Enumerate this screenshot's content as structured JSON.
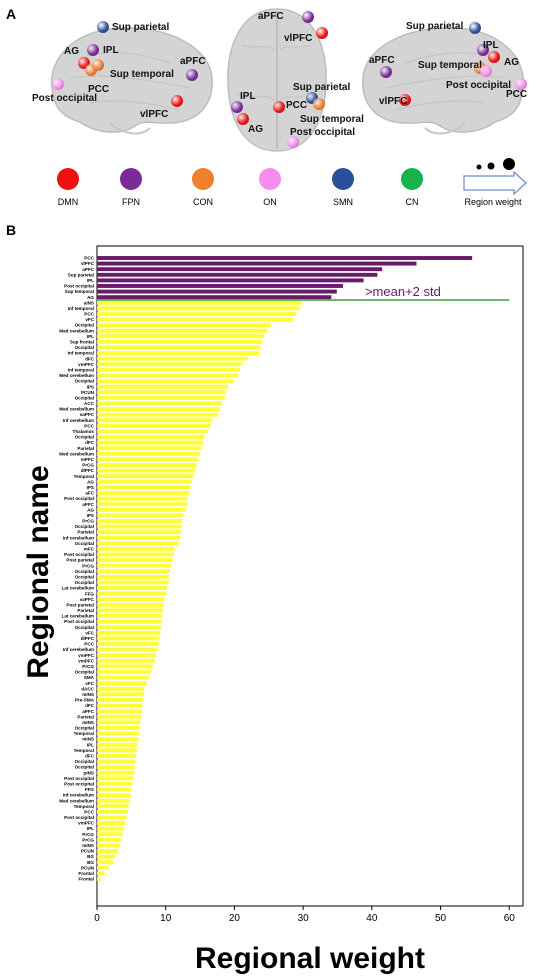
{
  "panels": {
    "a_label": "A",
    "b_label": "B"
  },
  "brain_views": [
    {
      "regions": [
        {
          "name": "Sup parietal",
          "network": "SMN"
        },
        {
          "name": "IPL",
          "network": "FPN"
        },
        {
          "name": "AG",
          "network": "DMN"
        },
        {
          "name": "PCC",
          "network": "CON"
        },
        {
          "name": "Sup temporal",
          "network": "CON"
        },
        {
          "name": "Post occipital",
          "network": "ON"
        },
        {
          "name": "aPFC",
          "network": "FPN"
        },
        {
          "name": "vlPFC",
          "network": "DMN"
        }
      ]
    },
    {
      "regions": [
        {
          "name": "aPFC",
          "network": "FPN"
        },
        {
          "name": "vlPFC",
          "network": "DMN"
        },
        {
          "name": "IPL",
          "network": "FPN"
        },
        {
          "name": "AG",
          "network": "DMN"
        },
        {
          "name": "PCC",
          "network": "DMN"
        },
        {
          "name": "Sup parietal",
          "network": "SMN"
        },
        {
          "name": "Sup temporal",
          "network": "CON"
        },
        {
          "name": "Post occipital",
          "network": "ON"
        }
      ]
    },
    {
      "regions": [
        {
          "name": "Sup parietal",
          "network": "SMN"
        },
        {
          "name": "IPL",
          "network": "FPN"
        },
        {
          "name": "aPFC",
          "network": "FPN"
        },
        {
          "name": "Sup temporal",
          "network": "CON"
        },
        {
          "name": "AG",
          "network": "DMN"
        },
        {
          "name": "Post occipital",
          "network": "ON"
        },
        {
          "name": "vlPFC",
          "network": "DMN"
        },
        {
          "name": "PCC",
          "network": "ON"
        }
      ]
    }
  ],
  "legend": {
    "networks": [
      {
        "label": "DMN",
        "color": "#ee1111"
      },
      {
        "label": "FPN",
        "color": "#7a2a9a"
      },
      {
        "label": "CON",
        "color": "#f07f2e"
      },
      {
        "label": "ON",
        "color": "#f58cf0"
      },
      {
        "label": "SMN",
        "color": "#2c4f9a"
      },
      {
        "label": "CN",
        "color": "#17b24a"
      }
    ],
    "weight_label": "Region weight"
  },
  "colors": {
    "top_bar": "#6a1a6a",
    "other_bar": "#ffff33",
    "threshold_line": "#3aa33a",
    "threshold_text": "#6a1a6a"
  },
  "chart_data": {
    "type": "bar",
    "orientation": "horizontal",
    "xlabel": "Regional weight",
    "ylabel": "Regional name",
    "xlim": [
      0,
      62
    ],
    "xticks": [
      0,
      10,
      20,
      30,
      40,
      50,
      60
    ],
    "threshold": {
      "label": ">mean+2 std",
      "value": 30
    },
    "categories": [
      "PCC",
      "vlPFC",
      "aPFC",
      "Sup parietal",
      "IPL",
      "Post occipital",
      "Sup temporal",
      "AG",
      "aINS",
      "Inf temporal",
      "PCC",
      "vFC",
      "Occipital",
      "Med cerebellum",
      "IPL",
      "Sup frontal",
      "Occipital",
      "Inf temporal",
      "dFC",
      "vmPFC",
      "Inf temporal",
      "Med cerebellum",
      "Occipital",
      "IPS",
      "PCUN",
      "Occipital",
      "ACC",
      "Med cerebellum",
      "vaPFC",
      "Inf cerebellum",
      "PCC",
      "Thalamus",
      "Occipital",
      "dFC",
      "Parietal",
      "Med cerebellum",
      "mPFC",
      "PrCG",
      "dlPFC",
      "Temporal",
      "AG",
      "IPS",
      "aFC",
      "Post occipital",
      "aPFC",
      "AG",
      "IPS",
      "PrCG",
      "Occipital",
      "Parietal",
      "Inf cerebellum",
      "Occipital",
      "mFC",
      "Post occipital",
      "Post parietal",
      "PrCG",
      "Occipital",
      "Occipital",
      "Occipital",
      "Lat cerebellum",
      "FFG",
      "vaPFC",
      "Post parietal",
      "Parietal",
      "Lat cerebellum",
      "Post occipital",
      "Occipital",
      "vFC",
      "dlPFC",
      "PCC",
      "Inf cerebellum",
      "vmPFC",
      "vmPFC",
      "PrCG",
      "Occipital",
      "SMA",
      "vFC",
      "dACC",
      "mINS",
      "Pre-SMA",
      "dFC",
      "aPFC",
      "Parietal",
      "mINS",
      "Occipital",
      "Temporal",
      "mINS",
      "IPL",
      "Temporal",
      "dFC",
      "Occipital",
      "Occipital",
      "pINS",
      "Post occipital",
      "Post occipital",
      "FFG",
      "Inf cerebellum",
      "Med cerebellum",
      "Temporal",
      "PCC",
      "Post occipital",
      "vmPFC",
      "IPL",
      "PrCG",
      "PrCG",
      "mINS",
      "PCUN",
      "BG",
      "BG",
      "PCUN",
      "Frontal",
      "Frontal"
    ],
    "values": [
      54.6,
      46.5,
      41.5,
      40.8,
      38.8,
      35.8,
      34.9,
      34.1,
      29.8,
      29.5,
      29,
      28.5,
      25.3,
      24.8,
      24.3,
      24,
      23.8,
      23.6,
      22,
      21,
      20.8,
      20.5,
      19.8,
      19.1,
      18.8,
      18.6,
      18.2,
      17.9,
      17.6,
      16.8,
      16.5,
      16.2,
      15.6,
      15.5,
      15.2,
      15,
      14.8,
      14.5,
      14.3,
      14,
      13.8,
      13.6,
      13.4,
      13.2,
      13.1,
      12.9,
      12.6,
      12.4,
      12.3,
      12.2,
      12.1,
      11.9,
      11.3,
      11.2,
      11,
      10.8,
      10.6,
      10.5,
      10.4,
      10.2,
      10,
      9.8,
      9.7,
      9.6,
      9.5,
      9.4,
      9.3,
      9.2,
      9.1,
      9,
      8.8,
      8.6,
      8.4,
      8.1,
      7.9,
      7.5,
      7.2,
      6.9,
      6.8,
      6.7,
      6.6,
      6.5,
      6.4,
      6.3,
      6.2,
      6.1,
      6,
      5.9,
      5.8,
      5.7,
      5.6,
      5.5,
      5.4,
      5.3,
      5.1,
      5,
      4.9,
      4.8,
      4.6,
      4.5,
      4.3,
      4.1,
      3.9,
      3.7,
      3.5,
      3.3,
      3.1,
      2.6,
      2.3,
      1.7,
      1.1,
      0.5
    ]
  }
}
